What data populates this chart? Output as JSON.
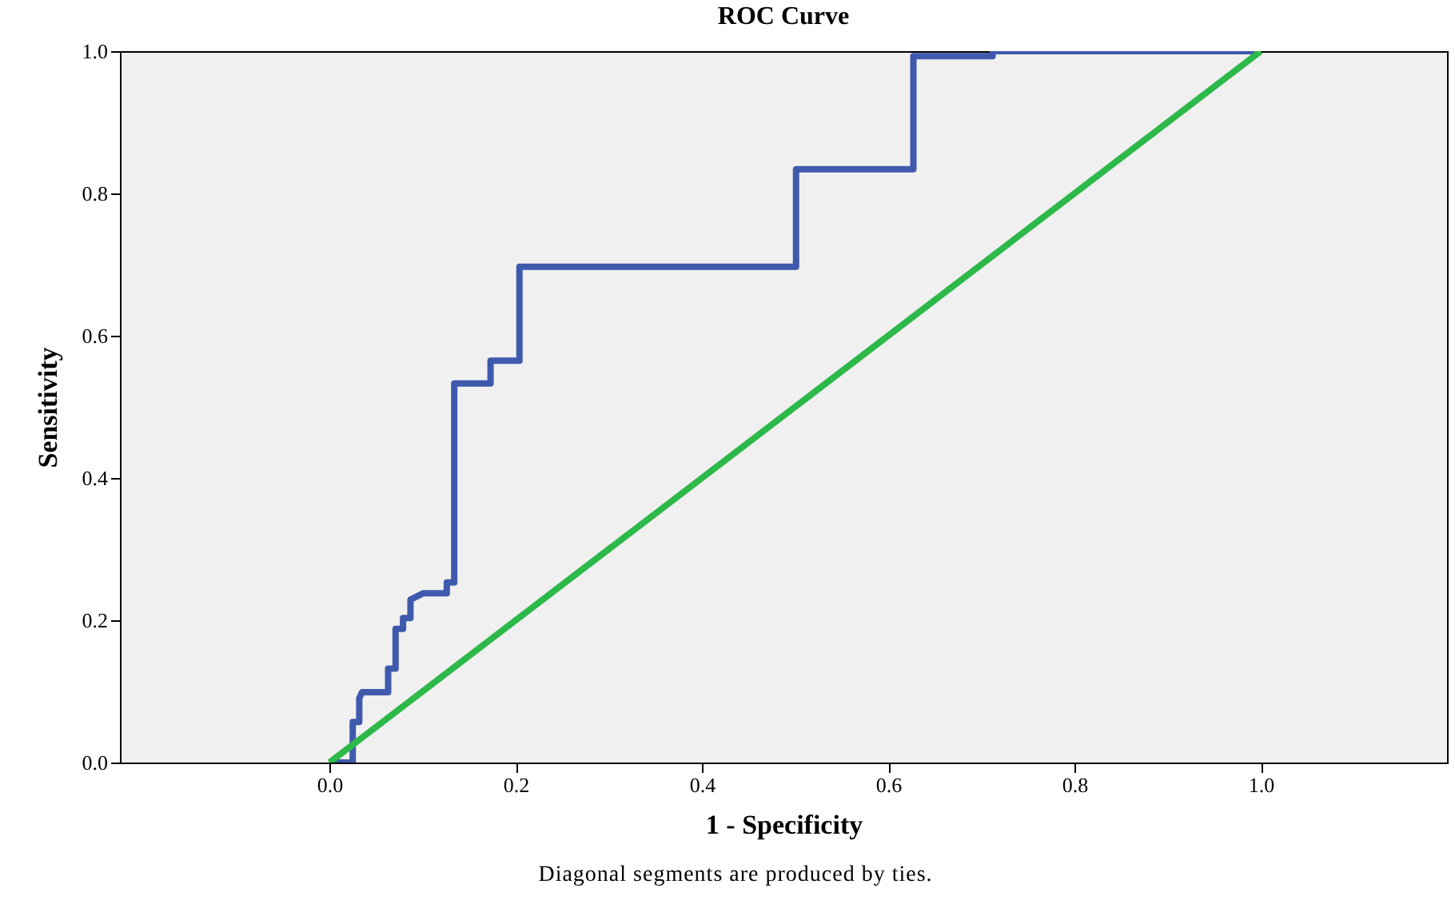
{
  "chart_data": {
    "type": "line",
    "title": "ROC Curve",
    "xlabel": "1 - Specificity",
    "ylabel": "Sensitivity",
    "annotations": [
      "Diagonal segments are produced by ties."
    ],
    "xlim": [
      -0.225,
      1.2
    ],
    "ylim": [
      0,
      1
    ],
    "xticks": [
      {
        "value": 0,
        "label": "0.0"
      },
      {
        "value": 0.2,
        "label": "0.2"
      },
      {
        "value": 0.4,
        "label": "0.4"
      },
      {
        "value": 0.6,
        "label": "0.6"
      },
      {
        "value": 0.8,
        "label": "0.8"
      },
      {
        "value": 1,
        "label": "1.0"
      }
    ],
    "yticks": [
      {
        "value": 0,
        "label": "0.0"
      },
      {
        "value": 0.2,
        "label": "0.2"
      },
      {
        "value": 0.4,
        "label": "0.4"
      },
      {
        "value": 0.6,
        "label": "0.6"
      },
      {
        "value": 0.8,
        "label": "0.8"
      },
      {
        "value": 1,
        "label": "1.0"
      }
    ],
    "grid": false,
    "line_style": "solid",
    "marker": "none",
    "series": [
      {
        "color": "#3f5aad",
        "x": [
          0,
          0.025,
          0.025,
          0.032,
          0.032,
          0.035,
          0.063,
          0.063,
          0.071,
          0.071,
          0.079,
          0.079,
          0.087,
          0.087,
          0.101,
          0.126,
          0.126,
          0.134,
          0.134,
          0.173,
          0.173,
          0.204,
          0.204,
          0.501,
          0.501,
          0.627,
          0.627,
          0.712,
          0.712,
          1
        ],
        "values": [
          0,
          0,
          0.057,
          0.057,
          0.09,
          0.099,
          0.099,
          0.132,
          0.132,
          0.188,
          0.188,
          0.203,
          0.203,
          0.229,
          0.238,
          0.238,
          0.253,
          0.253,
          0.533,
          0.533,
          0.565,
          0.565,
          0.697,
          0.697,
          0.834,
          0.834,
          0.993,
          0.993,
          1,
          1
        ]
      },
      {
        "color": "#2db84a",
        "x": [
          0,
          1
        ],
        "values": [
          0,
          1
        ]
      }
    ]
  }
}
